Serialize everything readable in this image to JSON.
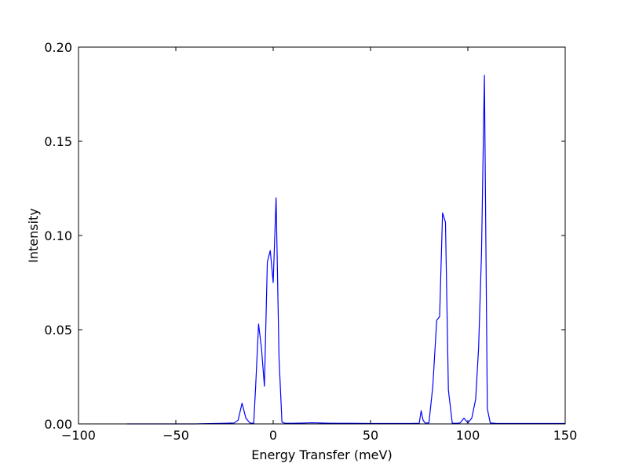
{
  "chart_data": {
    "type": "line",
    "title": "",
    "xlabel": "Energy Transfer (meV)",
    "ylabel": "Intensity",
    "xlim": [
      -100,
      150
    ],
    "ylim": [
      0.0,
      0.2
    ],
    "x_ticks": [
      -100,
      -50,
      0,
      50,
      100,
      150
    ],
    "x_tick_labels": [
      "−100",
      "−50",
      "0",
      "50",
      "100",
      "150"
    ],
    "y_ticks": [
      0.0,
      0.05,
      0.1,
      0.15,
      0.2
    ],
    "y_tick_labels": [
      "0.00",
      "0.05",
      "0.10",
      "0.15",
      "0.20"
    ],
    "grid": false,
    "series": [
      {
        "color": "#0000ff",
        "x": [
          -75,
          -60,
          -40,
          -25,
          -20,
          -18,
          -16,
          -14,
          -12,
          -10,
          -9,
          -7.5,
          -6,
          -4.5,
          -3,
          -1.5,
          0,
          1.5,
          3,
          4.5,
          6,
          10,
          20,
          30,
          40,
          50,
          60,
          70,
          75,
          76,
          77,
          78,
          80,
          82,
          84,
          85.5,
          87,
          88.5,
          90,
          92,
          94,
          96,
          98,
          100,
          102,
          104,
          105.5,
          107,
          108.5,
          110,
          111.5,
          115,
          130,
          150
        ],
        "y": [
          0.0,
          0.0,
          0.0,
          0.0003,
          0.0005,
          0.002,
          0.011,
          0.003,
          0.0005,
          0.0003,
          0.02,
          0.053,
          0.04,
          0.02,
          0.086,
          0.092,
          0.075,
          0.12,
          0.035,
          0.001,
          0.0003,
          0.0003,
          0.0006,
          0.0003,
          0.0003,
          0.0002,
          0.0002,
          0.0002,
          0.0003,
          0.007,
          0.002,
          0.0005,
          0.0005,
          0.02,
          0.055,
          0.057,
          0.112,
          0.107,
          0.018,
          0.0003,
          0.0003,
          0.0005,
          0.003,
          0.0005,
          0.003,
          0.013,
          0.04,
          0.09,
          0.185,
          0.008,
          0.0005,
          0.0002,
          0.0002,
          0.0002
        ]
      }
    ]
  }
}
